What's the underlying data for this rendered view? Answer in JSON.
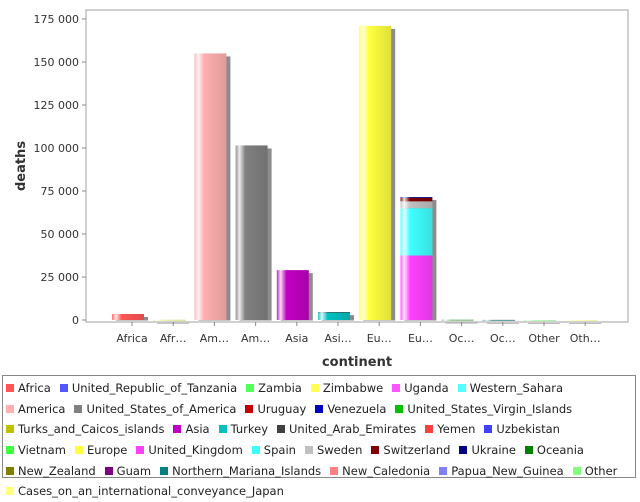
{
  "chart_data": {
    "type": "bar",
    "xlabel": "continent",
    "ylabel": "deaths",
    "ylim": [
      0,
      180000
    ],
    "yticks": [
      0,
      25000,
      50000,
      75000,
      100000,
      125000,
      150000,
      175000
    ],
    "ytick_labels": [
      "0",
      "25 000",
      "50 000",
      "75 000",
      "100 000",
      "125 000",
      "150 000",
      "175 000"
    ],
    "grid": false,
    "legend_position": "bottom",
    "categories": [
      "Africa",
      "Afr…",
      "Am…",
      "Am…",
      "Asia",
      "Asi…",
      "Eu…",
      "Eu…",
      "Oc…",
      "Oc…",
      "Other",
      "Oth…"
    ],
    "series": [
      {
        "name": "Africa",
        "color": "#ff5555",
        "values": [
          3500,
          0,
          0,
          0,
          0,
          0,
          0,
          0,
          0,
          0,
          0,
          0
        ]
      },
      {
        "name": "United_Republic_of_Tanzania",
        "color": "#5555ff",
        "values": [
          0,
          20,
          0,
          0,
          0,
          0,
          0,
          0,
          0,
          0,
          0,
          0
        ]
      },
      {
        "name": "Zambia",
        "color": "#55ff55",
        "values": [
          0,
          20,
          0,
          0,
          0,
          0,
          0,
          0,
          0,
          0,
          0,
          0
        ]
      },
      {
        "name": "Zimbabwe",
        "color": "#ffff55",
        "values": [
          0,
          20,
          0,
          0,
          0,
          0,
          0,
          0,
          0,
          0,
          0,
          0
        ]
      },
      {
        "name": "Uganda",
        "color": "#ff55ff",
        "values": [
          0,
          0,
          0,
          0,
          0,
          0,
          0,
          0,
          0,
          0,
          0,
          0
        ]
      },
      {
        "name": "Western_Sahara",
        "color": "#55ffff",
        "values": [
          0,
          0,
          0,
          0,
          0,
          0,
          0,
          0,
          0,
          0,
          0,
          0
        ]
      },
      {
        "name": "America",
        "color": "#ffafaf",
        "values": [
          0,
          0,
          155000,
          0,
          0,
          0,
          0,
          0,
          0,
          0,
          0,
          0
        ]
      },
      {
        "name": "United_States_of_America",
        "color": "#808080",
        "values": [
          0,
          0,
          0,
          101500,
          0,
          0,
          0,
          0,
          0,
          0,
          0,
          0
        ]
      },
      {
        "name": "Uruguay",
        "color": "#c00000",
        "values": [
          0,
          0,
          0,
          0,
          0,
          0,
          0,
          0,
          0,
          0,
          0,
          0
        ]
      },
      {
        "name": "Venezuela",
        "color": "#0000c0",
        "values": [
          0,
          0,
          0,
          0,
          0,
          0,
          0,
          0,
          0,
          0,
          0,
          0
        ]
      },
      {
        "name": "United_States_Virgin_Islands",
        "color": "#00c000",
        "values": [
          0,
          0,
          0,
          0,
          0,
          0,
          0,
          0,
          0,
          0,
          0,
          0
        ]
      },
      {
        "name": "Turks_and_Caicos_islands",
        "color": "#c0c000",
        "values": [
          0,
          0,
          0,
          0,
          0,
          0,
          0,
          0,
          0,
          0,
          0,
          0
        ]
      },
      {
        "name": "Asia",
        "color": "#c000c0",
        "values": [
          0,
          0,
          0,
          0,
          29000,
          0,
          0,
          0,
          0,
          0,
          0,
          0
        ]
      },
      {
        "name": "Turkey",
        "color": "#00c0c0",
        "values": [
          0,
          0,
          0,
          0,
          0,
          4500,
          0,
          0,
          0,
          0,
          0,
          0
        ]
      },
      {
        "name": "United_Arab_Emirates",
        "color": "#404040",
        "values": [
          0,
          0,
          0,
          0,
          0,
          100,
          0,
          0,
          0,
          0,
          0,
          0
        ]
      },
      {
        "name": "Yemen",
        "color": "#ff4040",
        "values": [
          0,
          0,
          0,
          0,
          0,
          0,
          0,
          0,
          0,
          0,
          0,
          0
        ]
      },
      {
        "name": "Uzbekistan",
        "color": "#4040ff",
        "values": [
          0,
          0,
          0,
          0,
          0,
          0,
          0,
          0,
          0,
          0,
          0,
          0
        ]
      },
      {
        "name": "Vietnam",
        "color": "#40ff40",
        "values": [
          0,
          0,
          0,
          0,
          0,
          0,
          0,
          0,
          0,
          0,
          0,
          0
        ]
      },
      {
        "name": "Europe",
        "color": "#ffff40",
        "values": [
          0,
          0,
          0,
          0,
          0,
          0,
          171000,
          0,
          0,
          0,
          0,
          0
        ]
      },
      {
        "name": "United_Kingdom",
        "color": "#ff40ff",
        "values": [
          0,
          0,
          0,
          0,
          0,
          0,
          0,
          37500,
          0,
          0,
          0,
          0
        ]
      },
      {
        "name": "Spain",
        "color": "#40ffff",
        "values": [
          0,
          0,
          0,
          0,
          0,
          0,
          0,
          27500,
          0,
          0,
          0,
          0
        ]
      },
      {
        "name": "Sweden",
        "color": "#c0c0c0",
        "values": [
          0,
          0,
          0,
          0,
          0,
          0,
          0,
          4000,
          0,
          0,
          0,
          0
        ]
      },
      {
        "name": "Switzerland",
        "color": "#800000",
        "values": [
          0,
          0,
          0,
          0,
          0,
          0,
          0,
          2000,
          0,
          0,
          0,
          0
        ]
      },
      {
        "name": "Ukraine",
        "color": "#000080",
        "values": [
          0,
          0,
          0,
          0,
          0,
          0,
          0,
          500,
          0,
          0,
          0,
          0
        ]
      },
      {
        "name": "Oceania",
        "color": "#008000",
        "values": [
          0,
          0,
          0,
          0,
          0,
          0,
          0,
          0,
          120,
          0,
          0,
          0
        ]
      },
      {
        "name": "New_Zealand",
        "color": "#808000",
        "values": [
          0,
          0,
          0,
          0,
          0,
          0,
          0,
          0,
          0,
          22,
          0,
          0
        ]
      },
      {
        "name": "Guam",
        "color": "#800080",
        "values": [
          0,
          0,
          0,
          0,
          0,
          0,
          0,
          0,
          0,
          5,
          0,
          0
        ]
      },
      {
        "name": "Northern_Mariana_Islands",
        "color": "#008080",
        "values": [
          0,
          0,
          0,
          0,
          0,
          0,
          0,
          0,
          0,
          2,
          0,
          0
        ]
      },
      {
        "name": "New_Caledonia",
        "color": "#ff8080",
        "values": [
          0,
          0,
          0,
          0,
          0,
          0,
          0,
          0,
          0,
          0,
          0,
          0
        ]
      },
      {
        "name": "Papua_New_Guinea",
        "color": "#8080ff",
        "values": [
          0,
          0,
          0,
          0,
          0,
          0,
          0,
          0,
          0,
          0,
          0,
          0
        ]
      },
      {
        "name": "Other",
        "color": "#80ff80",
        "values": [
          0,
          0,
          0,
          0,
          0,
          0,
          0,
          0,
          0,
          0,
          7,
          0
        ]
      },
      {
        "name": "Cases_on_an_international_conveyance_Japan",
        "color": "#ffff80",
        "values": [
          0,
          0,
          0,
          0,
          0,
          0,
          0,
          0,
          0,
          0,
          0,
          7
        ]
      }
    ]
  }
}
